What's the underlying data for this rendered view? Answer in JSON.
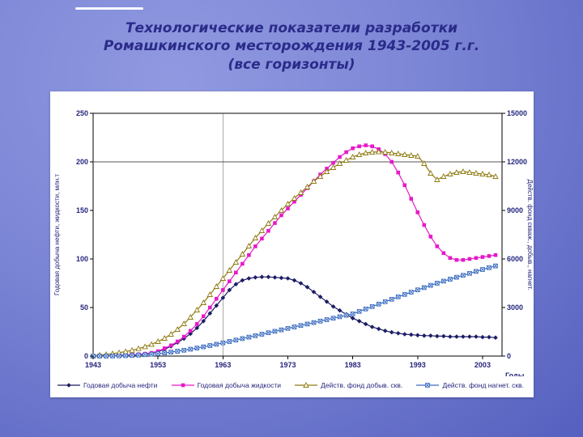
{
  "slide": {
    "title_lines": [
      "Технологические показатели разработки",
      "Ромашкинского месторождения 1943-2005 г.г.",
      "(все горизонты)"
    ],
    "colors": {
      "background_top": "#9099e0",
      "background_bottom": "#5560bf",
      "title_text": "#2b2b8a",
      "panel": "#ffffff",
      "axis_labels": "#26267e"
    }
  },
  "chart_data": {
    "type": "line",
    "title": "",
    "x_label": "Годы",
    "y_left_label": "Годовая добыча нефти, жидкости, млн.т",
    "y_right_label": "Действ. фонд скваж., добыв., нагнет.",
    "x_range": [
      1943,
      2006
    ],
    "y_left_range": [
      0,
      250
    ],
    "y_right_range": [
      0,
      15000
    ],
    "x_ticks": [
      1943,
      1953,
      1963,
      1973,
      1983,
      1993,
      2003
    ],
    "y_left_ticks": [
      0,
      50,
      100,
      150,
      200,
      250
    ],
    "y_right_ticks": [
      0,
      3000,
      6000,
      9000,
      12000,
      15000
    ],
    "gridline_h_left": 200,
    "gridline_v_year": 1963,
    "grid": "partial",
    "legend_position": "bottom",
    "label_color": "#26267e",
    "years": [
      1943,
      1944,
      1945,
      1946,
      1947,
      1948,
      1949,
      1950,
      1951,
      1952,
      1953,
      1954,
      1955,
      1956,
      1957,
      1958,
      1959,
      1960,
      1961,
      1962,
      1963,
      1964,
      1965,
      1966,
      1967,
      1968,
      1969,
      1970,
      1971,
      1972,
      1973,
      1974,
      1975,
      1976,
      1977,
      1978,
      1979,
      1980,
      1981,
      1982,
      1983,
      1984,
      1985,
      1986,
      1987,
      1988,
      1989,
      1990,
      1991,
      1992,
      1993,
      1994,
      1995,
      1996,
      1997,
      1998,
      1999,
      2000,
      2001,
      2002,
      2003,
      2004,
      2005
    ],
    "series": [
      {
        "name": "Годовая добыча нефти",
        "axis": "left",
        "units": "млн.т",
        "color": "#1c1c66",
        "marker": "diamond",
        "values": [
          0.2,
          0.3,
          0.4,
          0.6,
          0.8,
          1,
          1.3,
          1.7,
          2.2,
          3,
          4.5,
          7,
          10,
          14,
          18,
          23,
          29,
          36,
          44,
          52,
          60,
          68,
          74,
          78,
          80,
          81,
          81.5,
          81.5,
          81,
          80.5,
          80,
          78,
          75,
          71,
          66,
          61,
          56,
          51,
          47,
          43,
          39,
          36,
          33,
          30,
          28,
          26,
          24.5,
          23.5,
          22.5,
          22,
          21.5,
          21,
          21,
          20.5,
          20.5,
          20,
          20,
          20,
          20,
          20,
          19.5,
          19.5,
          19
        ]
      },
      {
        "name": "Годовая добыча жидкости",
        "axis": "left",
        "units": "млн.т",
        "color": "#e619c9",
        "marker": "square",
        "values": [
          0.2,
          0.3,
          0.4,
          0.6,
          0.8,
          1,
          1.4,
          1.8,
          2.4,
          3.3,
          5,
          8,
          11,
          15,
          20,
          26,
          33,
          41,
          50,
          59,
          68,
          77,
          86,
          95,
          104,
          113,
          121,
          129,
          137,
          145,
          152,
          159,
          166,
          173,
          180,
          187,
          193,
          199,
          205,
          210,
          214,
          216,
          217,
          216,
          213,
          208,
          200,
          189,
          176,
          162,
          148,
          135,
          123,
          113,
          106,
          101,
          99,
          99,
          100,
          101,
          102,
          103,
          104
        ]
      },
      {
        "name": "Действ. фонд добыв. скв.",
        "axis": "right",
        "units": "скв.",
        "color": "#8f7a10",
        "marker": "triangle-open",
        "values": [
          30,
          60,
          100,
          150,
          210,
          280,
          360,
          460,
          580,
          720,
          900,
          1100,
          1350,
          1650,
          2000,
          2400,
          2850,
          3300,
          3800,
          4300,
          4800,
          5300,
          5800,
          6300,
          6800,
          7300,
          7750,
          8200,
          8600,
          9000,
          9400,
          9750,
          10100,
          10450,
          10800,
          11100,
          11400,
          11650,
          11900,
          12100,
          12300,
          12450,
          12550,
          12600,
          12620,
          12600,
          12550,
          12500,
          12450,
          12400,
          12350,
          11900,
          11300,
          10900,
          11100,
          11250,
          11350,
          11400,
          11350,
          11300,
          11250,
          11200,
          11100
        ]
      },
      {
        "name": "Действ. фонд нагнет. скв.",
        "axis": "right",
        "units": "скв.",
        "color": "#3b6cc0",
        "marker": "square-x",
        "values": [
          0,
          0,
          0,
          5,
          15,
          25,
          40,
          60,
          85,
          115,
          150,
          195,
          245,
          300,
          360,
          425,
          495,
          570,
          650,
          730,
          815,
          900,
          990,
          1080,
          1170,
          1260,
          1350,
          1440,
          1530,
          1620,
          1710,
          1800,
          1890,
          1980,
          2070,
          2160,
          2250,
          2340,
          2430,
          2520,
          2610,
          2760,
          2910,
          3060,
          3210,
          3360,
          3510,
          3660,
          3810,
          3950,
          4090,
          4230,
          4370,
          4500,
          4630,
          4750,
          4870,
          4990,
          5110,
          5230,
          5350,
          5460,
          5570
        ]
      }
    ]
  }
}
